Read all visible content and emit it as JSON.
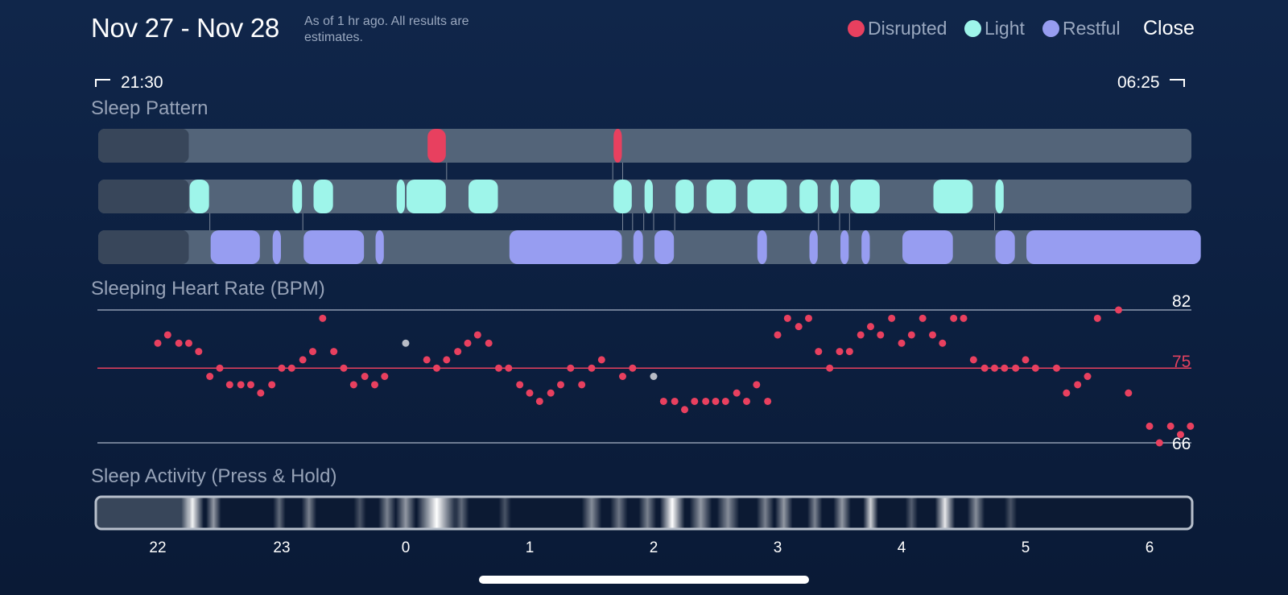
{
  "header": {
    "title": "Nov 27 - Nov 28",
    "subtitle": "As of 1 hr ago. All results are estimates.",
    "close_label": "Close"
  },
  "legend": [
    {
      "label": "Disrupted",
      "color": "#e8405f"
    },
    {
      "label": "Light",
      "color": "#9ef5ea"
    },
    {
      "label": "Restful",
      "color": "#979df1"
    }
  ],
  "time_range": {
    "start": "21:30",
    "end": "06:25"
  },
  "sleep_pattern": {
    "title": "Sleep Pattern",
    "start_hour": 21.5,
    "end_hour": 30.42,
    "no_data_until_hour": 22.25,
    "disrupted": [
      [
        24.17,
        24.33
      ],
      [
        25.67,
        25.75
      ]
    ],
    "light": [
      [
        22.25,
        22.42
      ],
      [
        23.08,
        23.17
      ],
      [
        23.25,
        23.42
      ],
      [
        23.92,
        24.0
      ],
      [
        24.0,
        24.33
      ],
      [
        24.5,
        24.75
      ],
      [
        25.67,
        25.83
      ],
      [
        25.92,
        26.0
      ],
      [
        26.17,
        26.33
      ],
      [
        26.42,
        26.67
      ],
      [
        26.75,
        27.08
      ],
      [
        27.17,
        27.33
      ],
      [
        27.42,
        27.5
      ],
      [
        27.58,
        27.83
      ],
      [
        28.25,
        28.58
      ],
      [
        28.75,
        28.83
      ]
    ],
    "restful": [
      [
        22.42,
        22.83
      ],
      [
        22.92,
        23.0
      ],
      [
        23.17,
        23.67
      ],
      [
        23.75,
        23.83
      ],
      [
        24.83,
        25.75
      ],
      [
        25.83,
        25.92
      ],
      [
        26.0,
        26.17
      ],
      [
        26.83,
        26.92
      ],
      [
        27.25,
        27.33
      ],
      [
        27.5,
        27.58
      ],
      [
        27.67,
        27.75
      ],
      [
        28.0,
        28.42
      ],
      [
        28.75,
        28.92
      ],
      [
        29.0,
        30.42
      ]
    ]
  },
  "heart_rate": {
    "title": "Sleeping Heart Rate (BPM)",
    "max_label": "82",
    "mid_label": "75",
    "min_label": "66",
    "y_max": 82,
    "y_mid": 75,
    "y_min": 66,
    "primary_color": "#e8405f",
    "secondary_color": "#b8bcc6",
    "points": [
      [
        22.0,
        78
      ],
      [
        22.08,
        79
      ],
      [
        22.17,
        78
      ],
      [
        22.25,
        78
      ],
      [
        22.33,
        77
      ],
      [
        22.42,
        74
      ],
      [
        22.5,
        75
      ],
      [
        22.58,
        73
      ],
      [
        22.67,
        73
      ],
      [
        22.75,
        73
      ],
      [
        22.83,
        72
      ],
      [
        22.92,
        73
      ],
      [
        23.0,
        75
      ],
      [
        23.08,
        75
      ],
      [
        23.17,
        76
      ],
      [
        23.25,
        77
      ],
      [
        23.33,
        81
      ],
      [
        23.42,
        77
      ],
      [
        23.5,
        75
      ],
      [
        23.58,
        73
      ],
      [
        23.67,
        74
      ],
      [
        23.75,
        73
      ],
      [
        23.83,
        74
      ],
      [
        24.0,
        78,
        "g"
      ],
      [
        24.17,
        76
      ],
      [
        24.25,
        75
      ],
      [
        24.33,
        76
      ],
      [
        24.42,
        77
      ],
      [
        24.5,
        78
      ],
      [
        24.58,
        79
      ],
      [
        24.67,
        78
      ],
      [
        24.75,
        75
      ],
      [
        24.83,
        75
      ],
      [
        24.92,
        73
      ],
      [
        25.0,
        72
      ],
      [
        25.08,
        71
      ],
      [
        25.17,
        72
      ],
      [
        25.25,
        73
      ],
      [
        25.33,
        75
      ],
      [
        25.42,
        73
      ],
      [
        25.5,
        75
      ],
      [
        25.58,
        76
      ],
      [
        25.75,
        74
      ],
      [
        25.83,
        75
      ],
      [
        26.0,
        74,
        "g"
      ],
      [
        26.08,
        71
      ],
      [
        26.17,
        71
      ],
      [
        26.25,
        70
      ],
      [
        26.33,
        71
      ],
      [
        26.42,
        71
      ],
      [
        26.5,
        71
      ],
      [
        26.58,
        71
      ],
      [
        26.67,
        72
      ],
      [
        26.75,
        71
      ],
      [
        26.83,
        73
      ],
      [
        26.92,
        71
      ],
      [
        27.0,
        79
      ],
      [
        27.08,
        81
      ],
      [
        27.17,
        80
      ],
      [
        27.25,
        81
      ],
      [
        27.33,
        77
      ],
      [
        27.42,
        75
      ],
      [
        27.5,
        77
      ],
      [
        27.58,
        77
      ],
      [
        27.67,
        79
      ],
      [
        27.75,
        80
      ],
      [
        27.83,
        79
      ],
      [
        27.92,
        81
      ],
      [
        28.0,
        78
      ],
      [
        28.08,
        79
      ],
      [
        28.17,
        81
      ],
      [
        28.25,
        79
      ],
      [
        28.33,
        78
      ],
      [
        28.42,
        81
      ],
      [
        28.5,
        81
      ],
      [
        28.58,
        76
      ],
      [
        28.67,
        75
      ],
      [
        28.75,
        75
      ],
      [
        28.83,
        75
      ],
      [
        28.92,
        75
      ],
      [
        29.0,
        76
      ],
      [
        29.08,
        75
      ],
      [
        29.25,
        75
      ],
      [
        29.33,
        72
      ],
      [
        29.42,
        73
      ],
      [
        29.5,
        74
      ],
      [
        29.58,
        81
      ],
      [
        29.75,
        82
      ],
      [
        29.83,
        72
      ],
      [
        30.0,
        68
      ],
      [
        30.08,
        66
      ],
      [
        30.17,
        68
      ],
      [
        30.25,
        67
      ],
      [
        30.33,
        68
      ]
    ]
  },
  "sleep_activity": {
    "title": "Sleep Activity (Press & Hold)",
    "bursts": [
      [
        22.28,
        0.95,
        0.09
      ],
      [
        22.45,
        0.55,
        0.06
      ],
      [
        22.98,
        0.35,
        0.05
      ],
      [
        23.22,
        0.45,
        0.06
      ],
      [
        23.63,
        0.25,
        0.05
      ],
      [
        23.85,
        0.45,
        0.07
      ],
      [
        24.0,
        0.55,
        0.08
      ],
      [
        24.25,
        1.0,
        0.16
      ],
      [
        24.45,
        0.35,
        0.06
      ],
      [
        24.8,
        0.25,
        0.05
      ],
      [
        25.5,
        0.5,
        0.08
      ],
      [
        25.72,
        0.4,
        0.07
      ],
      [
        25.95,
        0.45,
        0.07
      ],
      [
        26.15,
        1.0,
        0.1
      ],
      [
        26.38,
        0.55,
        0.09
      ],
      [
        26.6,
        0.5,
        0.09
      ],
      [
        26.9,
        0.45,
        0.07
      ],
      [
        27.05,
        0.55,
        0.07
      ],
      [
        27.3,
        0.45,
        0.06
      ],
      [
        27.52,
        0.55,
        0.07
      ],
      [
        27.75,
        0.8,
        0.06
      ],
      [
        28.08,
        0.3,
        0.05
      ],
      [
        28.35,
        0.9,
        0.08
      ],
      [
        28.6,
        0.5,
        0.07
      ],
      [
        28.88,
        0.25,
        0.05
      ]
    ]
  },
  "x_axis": {
    "labels": [
      "22",
      "23",
      "0",
      "1",
      "2",
      "3",
      "4",
      "5",
      "6"
    ],
    "hours": [
      22,
      23,
      24,
      25,
      26,
      27,
      28,
      29,
      30
    ]
  }
}
